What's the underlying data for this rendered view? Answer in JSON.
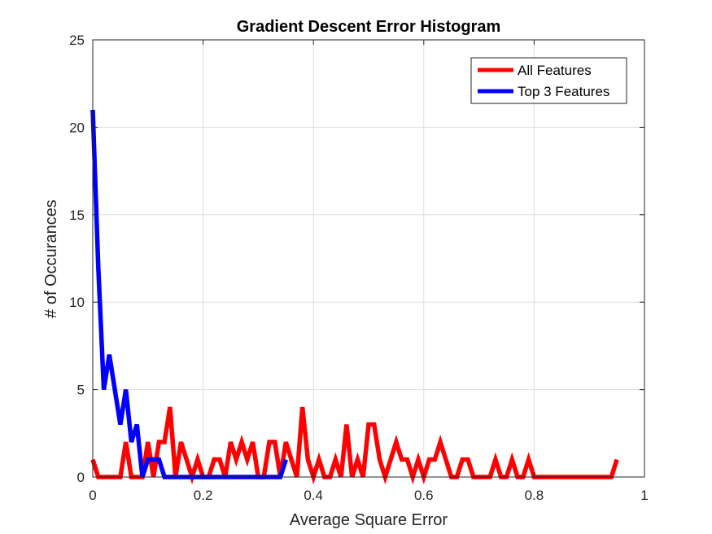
{
  "chart_data": {
    "type": "line",
    "title": "Gradient Descent Error Histogram",
    "xlabel": "Average Square Error",
    "ylabel": "# of Occurances",
    "xlim": [
      0,
      1
    ],
    "ylim": [
      0,
      25
    ],
    "xticks": [
      0,
      0.2,
      0.4,
      0.6,
      0.8,
      1
    ],
    "xtick_labels": [
      "0",
      "0.2",
      "0.4",
      "0.6",
      "0.8",
      "1"
    ],
    "yticks": [
      0,
      5,
      10,
      15,
      20,
      25
    ],
    "ytick_labels": [
      "0",
      "5",
      "10",
      "15",
      "20",
      "25"
    ],
    "grid": true,
    "legend_position": "top-right",
    "series": [
      {
        "name": "All Features",
        "color": "#ff0000",
        "x": [
          0,
          0.01,
          0.02,
          0.03,
          0.04,
          0.05,
          0.06,
          0.07,
          0.08,
          0.09,
          0.1,
          0.11,
          0.12,
          0.13,
          0.14,
          0.15,
          0.16,
          0.17,
          0.18,
          0.19,
          0.2,
          0.21,
          0.22,
          0.23,
          0.24,
          0.25,
          0.26,
          0.27,
          0.28,
          0.29,
          0.3,
          0.31,
          0.32,
          0.33,
          0.34,
          0.35,
          0.36,
          0.37,
          0.38,
          0.39,
          0.4,
          0.41,
          0.42,
          0.43,
          0.44,
          0.45,
          0.46,
          0.47,
          0.48,
          0.49,
          0.5,
          0.51,
          0.52,
          0.53,
          0.54,
          0.55,
          0.56,
          0.57,
          0.58,
          0.59,
          0.6,
          0.61,
          0.62,
          0.63,
          0.64,
          0.65,
          0.66,
          0.67,
          0.68,
          0.69,
          0.7,
          0.71,
          0.72,
          0.73,
          0.74,
          0.75,
          0.76,
          0.77,
          0.78,
          0.79,
          0.8,
          0.81,
          0.82,
          0.83,
          0.84,
          0.85,
          0.86,
          0.87,
          0.88,
          0.89,
          0.9,
          0.91,
          0.92,
          0.93,
          0.94,
          0.95
        ],
        "values": [
          1,
          0,
          0,
          0,
          0,
          0,
          2,
          0,
          0,
          0,
          2,
          0,
          2,
          2,
          4,
          0,
          2,
          1,
          0,
          1,
          0,
          0,
          1,
          1,
          0,
          2,
          1,
          2,
          1,
          2,
          0,
          0,
          2,
          2,
          0,
          2,
          1,
          0,
          4,
          1,
          0,
          1,
          0,
          0,
          1,
          0,
          3,
          0,
          1,
          0,
          3,
          3,
          1,
          0,
          1,
          2,
          1,
          1,
          0,
          1,
          0,
          1,
          1,
          2,
          1,
          0,
          0,
          1,
          1,
          0,
          0,
          0,
          0,
          1,
          0,
          0,
          1,
          0,
          0,
          1,
          0,
          0,
          0,
          0,
          0,
          0,
          0,
          0,
          0,
          0,
          0,
          0,
          0,
          0,
          0,
          1
        ]
      },
      {
        "name": "Top 3 Features",
        "color": "#0000ff",
        "x": [
          0,
          0.01,
          0.02,
          0.03,
          0.04,
          0.05,
          0.06,
          0.07,
          0.08,
          0.09,
          0.1,
          0.11,
          0.12,
          0.13,
          0.14,
          0.15,
          0.16,
          0.17,
          0.18,
          0.19,
          0.2,
          0.21,
          0.22,
          0.23,
          0.24,
          0.25,
          0.26,
          0.27,
          0.28,
          0.29,
          0.3,
          0.31,
          0.32,
          0.33,
          0.34,
          0.35
        ],
        "values": [
          21,
          12,
          5,
          7,
          5,
          3,
          5,
          2,
          3,
          0,
          1,
          1,
          1,
          0,
          0,
          0,
          0,
          0,
          0,
          0,
          0,
          0,
          0,
          0,
          0,
          0,
          0,
          0,
          0,
          0,
          0,
          0,
          0,
          0,
          0,
          1
        ]
      }
    ]
  }
}
